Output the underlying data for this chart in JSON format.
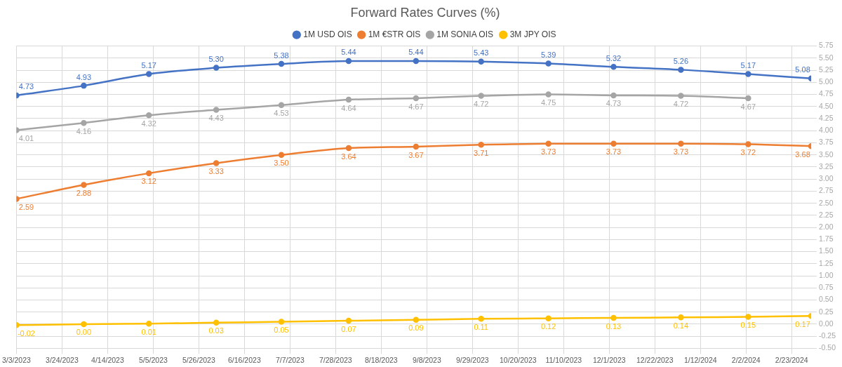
{
  "chart_data": {
    "type": "line",
    "title": "Forward Rates Curves (%)",
    "x": [
      "2023-03-03",
      "2023-04-03",
      "2023-05-03",
      "2023-06-03",
      "2023-07-03",
      "2023-08-03",
      "2023-09-03",
      "2023-10-03",
      "2023-11-03",
      "2023-12-03",
      "2024-01-03",
      "2024-02-03",
      "2024-03-03"
    ],
    "series": [
      {
        "name": "1M USD OIS",
        "color": "#4472c4",
        "values": [
          4.73,
          4.93,
          5.17,
          5.3,
          5.38,
          5.44,
          5.44,
          5.43,
          5.39,
          5.32,
          5.26,
          5.17,
          5.08
        ],
        "value_labels": [
          "4.73",
          "4.93",
          "5.17",
          "5.30",
          "5.38",
          "5.44",
          "5.44",
          "5.43",
          "5.39",
          "5.32",
          "5.26",
          "5.17",
          "5.08"
        ]
      },
      {
        "name": "1M €STR OIS",
        "color": "#ed7d31",
        "values": [
          2.59,
          2.88,
          3.12,
          3.33,
          3.5,
          3.64,
          3.67,
          3.71,
          3.73,
          3.73,
          3.73,
          3.72,
          3.68
        ],
        "value_labels": [
          "2.59",
          "2.88",
          "3.12",
          "3.33",
          "3.50",
          "3.64",
          "3.67",
          "3.71",
          "3.73",
          "3.73",
          "3.73",
          "3.72",
          "3.68"
        ]
      },
      {
        "name": "1M SONIA OIS",
        "color": "#a5a5a5",
        "values": [
          4.01,
          4.16,
          4.32,
          4.43,
          4.53,
          4.64,
          4.67,
          4.72,
          4.75,
          4.73,
          4.72,
          4.67,
          null
        ],
        "value_labels": [
          "4.01",
          "4.16",
          "4.32",
          "4.43",
          "4.53",
          "4.64",
          "4.67",
          "4.72",
          "4.75",
          "4.73",
          "4.72",
          "4.67",
          null
        ]
      },
      {
        "name": "3M JPY OIS",
        "color": "#ffc000",
        "values": [
          -0.02,
          0.0,
          0.01,
          0.03,
          0.05,
          0.07,
          0.09,
          0.11,
          0.12,
          0.13,
          0.14,
          0.15,
          0.17
        ],
        "value_labels": [
          "-0.02",
          "0.00",
          "0.01",
          "0.03",
          "0.05",
          "0.07",
          "0.09",
          "0.11",
          "0.12",
          "0.13",
          "0.14",
          "0.15",
          "0.17"
        ]
      }
    ],
    "xlim": [
      "2023-03-03",
      "2024-03-03"
    ],
    "xticks": [
      {
        "value": "2023-03-03",
        "label": "3/3/2023"
      },
      {
        "value": "2023-03-24",
        "label": "3/24/2023"
      },
      {
        "value": "2023-04-14",
        "label": "4/14/2023"
      },
      {
        "value": "2023-05-05",
        "label": "5/5/2023"
      },
      {
        "value": "2023-05-26",
        "label": "5/26/2023"
      },
      {
        "value": "2023-06-16",
        "label": "6/16/2023"
      },
      {
        "value": "2023-07-07",
        "label": "7/7/2023"
      },
      {
        "value": "2023-07-28",
        "label": "7/28/2023"
      },
      {
        "value": "2023-08-18",
        "label": "8/18/2023"
      },
      {
        "value": "2023-09-08",
        "label": "9/8/2023"
      },
      {
        "value": "2023-09-29",
        "label": "9/29/2023"
      },
      {
        "value": "2023-10-20",
        "label": "10/20/2023"
      },
      {
        "value": "2023-11-10",
        "label": "11/10/2023"
      },
      {
        "value": "2023-12-01",
        "label": "12/1/2023"
      },
      {
        "value": "2023-12-22",
        "label": "12/22/2023"
      },
      {
        "value": "2024-01-12",
        "label": "1/12/2024"
      },
      {
        "value": "2024-02-02",
        "label": "2/2/2024"
      },
      {
        "value": "2024-02-23",
        "label": "2/23/2024"
      }
    ],
    "ylim": [
      -0.5,
      5.75
    ],
    "yticks": [
      {
        "value": -0.5,
        "label": "-0.50"
      },
      {
        "value": -0.25,
        "label": "-0.25"
      },
      {
        "value": 0,
        "label": "0.00"
      },
      {
        "value": 0.25,
        "label": "0.25"
      },
      {
        "value": 0.5,
        "label": "0.50"
      },
      {
        "value": 0.75,
        "label": "0.75"
      },
      {
        "value": 1,
        "label": "1.00"
      },
      {
        "value": 1.25,
        "label": "1.25"
      },
      {
        "value": 1.5,
        "label": "1.50"
      },
      {
        "value": 1.75,
        "label": "1.75"
      },
      {
        "value": 2,
        "label": "2.00"
      },
      {
        "value": 2.25,
        "label": "2.25"
      },
      {
        "value": 2.5,
        "label": "2.50"
      },
      {
        "value": 2.75,
        "label": "2.75"
      },
      {
        "value": 3,
        "label": "3.00"
      },
      {
        "value": 3.25,
        "label": "3.25"
      },
      {
        "value": 3.5,
        "label": "3.50"
      },
      {
        "value": 3.75,
        "label": "3.75"
      },
      {
        "value": 4,
        "label": "4.00"
      },
      {
        "value": 4.25,
        "label": "4.25"
      },
      {
        "value": 4.5,
        "label": "4.50"
      },
      {
        "value": 4.75,
        "label": "4.75"
      },
      {
        "value": 5,
        "label": "5.00"
      },
      {
        "value": 5.25,
        "label": "5.25"
      },
      {
        "value": 5.5,
        "label": "5.50"
      },
      {
        "value": 5.75,
        "label": "5.75"
      }
    ],
    "grid": true,
    "legend": "top",
    "marker": "circle",
    "line_style": "solid"
  }
}
